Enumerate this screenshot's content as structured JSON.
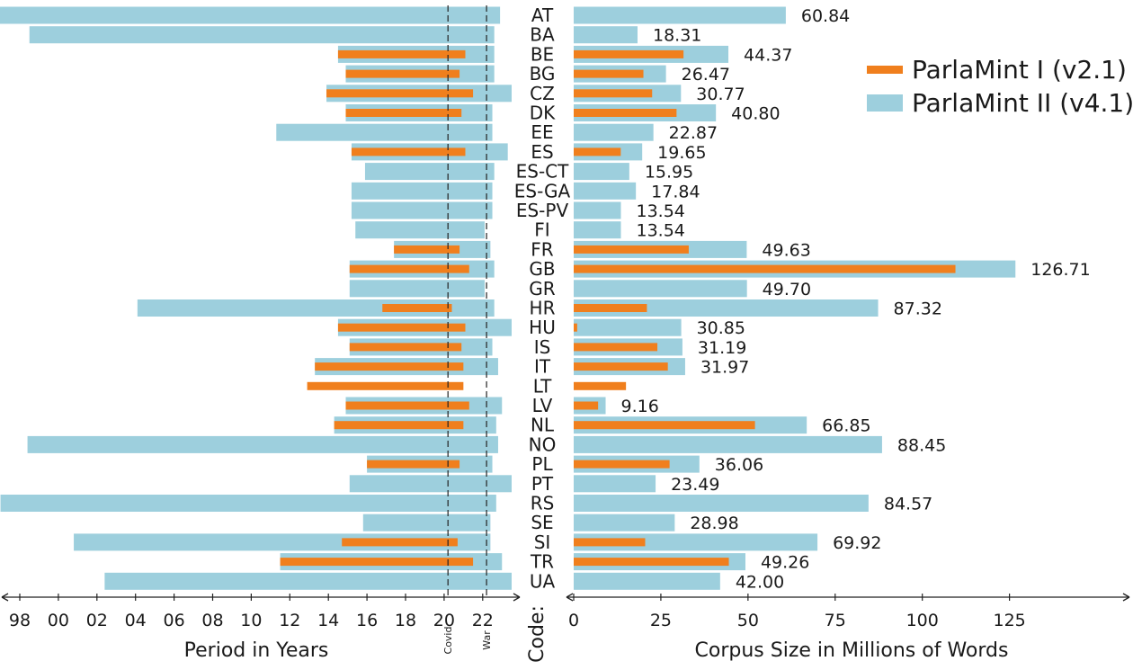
{
  "chart_data": [
    {
      "type": "bar",
      "title": "",
      "xlabel": "Period in Years",
      "ylabel": "Code:",
      "x_ticks": [
        "98",
        "00",
        "02",
        "04",
        "06",
        "08",
        "10",
        "12",
        "14",
        "16",
        "18",
        "20",
        "22"
      ],
      "xlim": [
        1997.2,
        2023.8
      ],
      "annotations": [
        {
          "label": "Covid",
          "x": 2020.2
        },
        {
          "label": "War",
          "x": 2022.2
        }
      ],
      "categories": [
        "AT",
        "BA",
        "BE",
        "BG",
        "CZ",
        "DK",
        "EE",
        "ES",
        "ES-CT",
        "ES-GA",
        "ES-PV",
        "FI",
        "FR",
        "GB",
        "GR",
        "HR",
        "HU",
        "IS",
        "IT",
        "LT",
        "LV",
        "NL",
        "NO",
        "PL",
        "PT",
        "RS",
        "SE",
        "SI",
        "TR",
        "UA"
      ],
      "series": [
        {
          "name": "ParlaMint I (v2.1)",
          "color": "#f07f1d",
          "ranges": [
            null,
            null,
            [
              2014.5,
              2021.1
            ],
            [
              2014.9,
              2020.8
            ],
            [
              2013.9,
              2021.5
            ],
            [
              2014.9,
              2020.9
            ],
            null,
            [
              2015.2,
              2021.1
            ],
            null,
            null,
            null,
            null,
            [
              2017.4,
              2020.8
            ],
            [
              2015.1,
              2021.3
            ],
            null,
            [
              2016.8,
              2020.4
            ],
            [
              2014.5,
              2021.1
            ],
            [
              2015.1,
              2020.9
            ],
            [
              2013.3,
              2021.0
            ],
            [
              2012.9,
              2021.0
            ],
            [
              2014.9,
              2021.3
            ],
            [
              2014.3,
              2021.0
            ],
            null,
            [
              2016.0,
              2020.8
            ],
            null,
            null,
            null,
            [
              2014.7,
              2020.7
            ],
            [
              2011.5,
              2021.5
            ],
            null
          ]
        },
        {
          "name": "ParlaMint II (v4.1)",
          "color": "#9dcfdd",
          "ranges": [
            [
              1996.2,
              2022.9
            ],
            [
              1998.5,
              2022.6
            ],
            [
              2014.5,
              2022.6
            ],
            [
              2014.9,
              2022.6
            ],
            [
              2013.9,
              2023.5
            ],
            [
              2014.9,
              2022.5
            ],
            [
              2011.3,
              2022.5
            ],
            [
              2015.2,
              2023.3
            ],
            [
              2015.9,
              2022.6
            ],
            [
              2015.2,
              2022.5
            ],
            [
              2015.2,
              2022.5
            ],
            [
              2015.4,
              2022.1
            ],
            [
              2017.4,
              2022.4
            ],
            [
              2015.1,
              2022.6
            ],
            [
              2015.1,
              2022.1
            ],
            [
              2004.1,
              2022.6
            ],
            [
              2014.5,
              2023.5
            ],
            [
              2015.1,
              2022.5
            ],
            [
              2013.3,
              2022.8
            ],
            null,
            [
              2014.9,
              2023.0
            ],
            [
              2014.3,
              2022.7
            ],
            [
              1998.4,
              2022.8
            ],
            [
              2016.0,
              2022.5
            ],
            [
              2015.1,
              2023.5
            ],
            [
              1997.0,
              2022.7
            ],
            [
              2015.8,
              2022.4
            ],
            [
              2000.8,
              2022.4
            ],
            [
              2011.5,
              2023.0
            ],
            [
              2002.4,
              2023.5
            ]
          ]
        }
      ],
      "grid": false,
      "legend": "none"
    },
    {
      "type": "bar",
      "title": "",
      "xlabel": "Corpus Size in Millions of Words",
      "xlim": [
        0,
        158
      ],
      "x_ticks": [
        0,
        25,
        50,
        75,
        100,
        125
      ],
      "categories": [
        "AT",
        "BA",
        "BE",
        "BG",
        "CZ",
        "DK",
        "EE",
        "ES",
        "ES-CT",
        "ES-GA",
        "ES-PV",
        "FI",
        "FR",
        "GB",
        "GR",
        "HR",
        "HU",
        "IS",
        "IT",
        "LT",
        "LV",
        "NL",
        "NO",
        "PL",
        "PT",
        "RS",
        "SE",
        "SI",
        "TR",
        "UA"
      ],
      "series": [
        {
          "name": "ParlaMint I (v2.1)",
          "color": "#f07f1d",
          "values": [
            null,
            null,
            31.5,
            20.0,
            22.5,
            29.5,
            null,
            13.5,
            null,
            null,
            null,
            null,
            33.0,
            109.5,
            null,
            21.0,
            1.0,
            24.0,
            27.0,
            15.0,
            7.0,
            52.0,
            null,
            27.5,
            null,
            null,
            null,
            20.5,
            44.5,
            null
          ]
        },
        {
          "name": "ParlaMint II (v4.1)",
          "color": "#9dcfdd",
          "values": [
            60.84,
            18.31,
            44.37,
            26.47,
            30.77,
            40.8,
            22.87,
            19.65,
            15.95,
            17.84,
            13.54,
            13.54,
            49.63,
            126.71,
            49.7,
            87.32,
            30.85,
            31.19,
            31.97,
            null,
            9.16,
            66.85,
            88.45,
            36.06,
            23.49,
            84.57,
            28.98,
            69.92,
            49.26,
            42.0
          ]
        }
      ],
      "data_labels": [
        "60.84",
        "18.31",
        "44.37",
        "26.47",
        "30.77",
        "40.80",
        "22.87",
        "19.65",
        "15.95",
        "17.84",
        "13.54",
        "13.54",
        "49.63",
        "126.71",
        "49.70",
        "87.32",
        "30.85",
        "31.19",
        "31.97",
        "",
        "9.16",
        "66.85",
        "88.45",
        "36.06",
        "23.49",
        "84.57",
        "28.98",
        "69.92",
        "49.26",
        "42.00"
      ],
      "grid": false,
      "legend": "top-right"
    }
  ],
  "legend": {
    "items": [
      {
        "label": "ParlaMint I (v2.1)",
        "color": "#f07f1d"
      },
      {
        "label": "ParlaMint II (v4.1)",
        "color": "#9dcfdd"
      }
    ]
  }
}
